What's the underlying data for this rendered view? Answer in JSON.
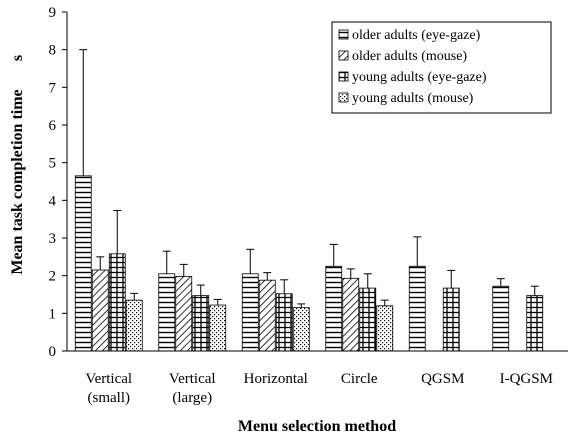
{
  "chart_data": {
    "type": "bar",
    "title": "",
    "xlabel": "Menu selection method",
    "ylabel": "Mean task completion time",
    "ylabel_unit": "s",
    "ylim": [
      0,
      9
    ],
    "yticks": [
      "0",
      "1",
      "2",
      "3",
      "4",
      "5",
      "6",
      "7",
      "8",
      "9"
    ],
    "grid": false,
    "legend_position": "top-right",
    "categories": [
      [
        "Vertical",
        "(small)"
      ],
      [
        "Vertical",
        "(large)"
      ],
      [
        "Horizontal"
      ],
      [
        "Circle"
      ],
      [
        "QGSM"
      ],
      [
        "I-QGSM"
      ]
    ],
    "series": [
      {
        "name": "older adults (eye-gaze)",
        "pattern": "horizontal-lines",
        "values": [
          4.65,
          2.05,
          2.05,
          2.25,
          2.25,
          1.72
        ],
        "errors": [
          3.35,
          0.6,
          0.65,
          0.58,
          0.78,
          0.2
        ]
      },
      {
        "name": "older adults (mouse)",
        "pattern": "diagonal-lines",
        "values": [
          2.15,
          1.98,
          1.88,
          1.93,
          null,
          null
        ],
        "errors": [
          0.35,
          0.32,
          0.2,
          0.25,
          null,
          null
        ]
      },
      {
        "name": "young adults (eye-gaze)",
        "pattern": "grid",
        "values": [
          2.58,
          1.47,
          1.52,
          1.67,
          1.67,
          1.47
        ],
        "errors": [
          1.15,
          0.28,
          0.37,
          0.38,
          0.47,
          0.25
        ]
      },
      {
        "name": "young adults (mouse)",
        "pattern": "dots",
        "values": [
          1.35,
          1.22,
          1.15,
          1.2,
          null,
          null
        ],
        "errors": [
          0.18,
          0.15,
          0.1,
          0.15,
          null,
          null
        ]
      }
    ]
  }
}
